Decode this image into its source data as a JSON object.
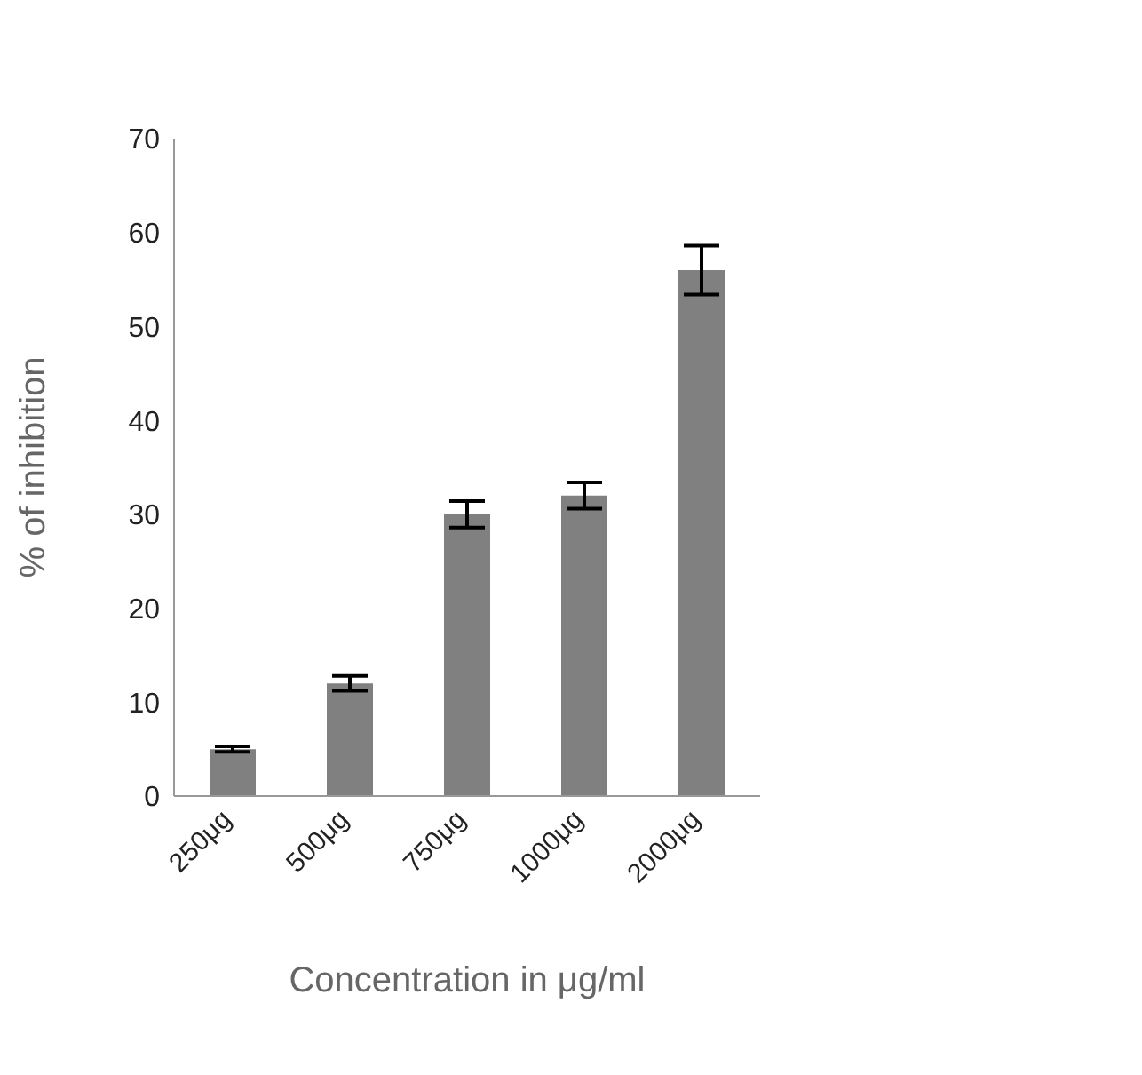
{
  "chart_data": {
    "type": "bar",
    "xlabel": "Concentration  in μg/ml",
    "ylabel": "% of inhibition",
    "categories": [
      "250μg",
      "500μg",
      "750μg",
      "1000μg",
      "2000μg"
    ],
    "values": [
      5,
      12,
      30,
      32,
      56
    ],
    "errors": [
      0.3,
      0.8,
      1.4,
      1.4,
      2.6
    ],
    "color": "#808080",
    "ylim": [
      0,
      70
    ],
    "yticks": [
      0,
      10,
      20,
      30,
      40,
      50,
      60,
      70
    ],
    "grid": false,
    "legend": false
  }
}
